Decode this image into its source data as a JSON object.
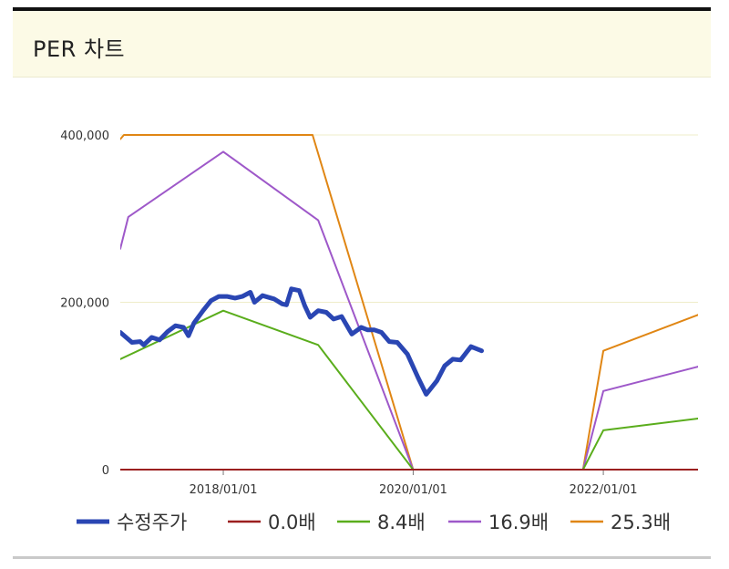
{
  "header": {
    "title": "PER 차트"
  },
  "colors": {
    "price": "#2a46b3",
    "zero": "#9b1f1f",
    "per8": "#5aad1c",
    "per16": "#9e58c9",
    "per25": "#e08614",
    "grid": "#efedc9",
    "axis": "#777777"
  },
  "chart_data": {
    "type": "line",
    "title": "PER 차트",
    "xlabel": "",
    "ylabel": "",
    "x_range": [
      "2016-12-01",
      "2022-12-31"
    ],
    "ylim": [
      0,
      400000
    ],
    "grid": true,
    "legend_position": "bottom",
    "y_ticks": [
      0,
      200000,
      400000
    ],
    "y_tick_labels": [
      "0",
      "200,000",
      "400,000"
    ],
    "x_ticks": [
      "2018/01/01",
      "2020/01/01",
      "2022/01/01"
    ],
    "x_tick_dates": [
      "2018-01-01",
      "2020-01-01",
      "2022-01-01"
    ],
    "series": [
      {
        "name": "수정주가",
        "color_key": "price",
        "width": 5,
        "points": [
          [
            "2016-12-01",
            164000
          ],
          [
            "2017-01-15",
            152000
          ],
          [
            "2017-02-15",
            153000
          ],
          [
            "2017-03-01",
            149000
          ],
          [
            "2017-04-01",
            158000
          ],
          [
            "2017-05-01",
            155000
          ],
          [
            "2017-06-01",
            165000
          ],
          [
            "2017-07-01",
            172000
          ],
          [
            "2017-08-01",
            170000
          ],
          [
            "2017-08-20",
            160000
          ],
          [
            "2017-09-10",
            175000
          ],
          [
            "2017-10-15",
            190000
          ],
          [
            "2017-11-15",
            202000
          ],
          [
            "2017-12-15",
            207000
          ],
          [
            "2018-01-15",
            207000
          ],
          [
            "2018-02-15",
            205000
          ],
          [
            "2018-03-15",
            207000
          ],
          [
            "2018-04-15",
            212000
          ],
          [
            "2018-05-01",
            200000
          ],
          [
            "2018-06-01",
            208000
          ],
          [
            "2018-07-15",
            204000
          ],
          [
            "2018-08-15",
            198000
          ],
          [
            "2018-09-01",
            197000
          ],
          [
            "2018-09-20",
            216000
          ],
          [
            "2018-10-20",
            214000
          ],
          [
            "2018-11-10",
            196000
          ],
          [
            "2018-12-01",
            182000
          ],
          [
            "2019-01-01",
            190000
          ],
          [
            "2019-02-01",
            188000
          ],
          [
            "2019-03-01",
            180000
          ],
          [
            "2019-04-01",
            183000
          ],
          [
            "2019-05-10",
            162000
          ],
          [
            "2019-06-15",
            170000
          ],
          [
            "2019-07-10",
            167000
          ],
          [
            "2019-08-05",
            167000
          ],
          [
            "2019-09-01",
            164000
          ],
          [
            "2019-10-01",
            153000
          ],
          [
            "2019-11-01",
            152000
          ],
          [
            "2019-12-10",
            138000
          ],
          [
            "2020-01-20",
            110000
          ],
          [
            "2020-02-20",
            90000
          ],
          [
            "2020-04-01",
            106000
          ],
          [
            "2020-05-01",
            124000
          ],
          [
            "2020-06-01",
            132000
          ],
          [
            "2020-07-01",
            131000
          ],
          [
            "2020-08-10",
            147000
          ],
          [
            "2020-09-20",
            142000
          ]
        ]
      },
      {
        "name": "0.0배",
        "color_key": "zero",
        "width": 2,
        "points": [
          [
            "2016-12-01",
            0
          ],
          [
            "2022-12-31",
            0
          ]
        ]
      },
      {
        "name": "8.4배",
        "color_key": "per8",
        "width": 2,
        "points": [
          [
            "2016-12-01",
            132000
          ],
          [
            "2018-01-01",
            190000
          ],
          [
            "2019-01-01",
            149000
          ],
          [
            "2020-01-01",
            0
          ],
          [
            "2021-10-15",
            0
          ],
          [
            "2022-01-01",
            47000
          ],
          [
            "2022-12-31",
            61000
          ]
        ]
      },
      {
        "name": "16.9배",
        "color_key": "per16",
        "width": 2,
        "points": [
          [
            "2016-12-01",
            264000
          ],
          [
            "2017-01-01",
            302000
          ],
          [
            "2018-01-01",
            380000
          ],
          [
            "2019-01-01",
            298000
          ],
          [
            "2020-01-01",
            0
          ],
          [
            "2021-10-15",
            0
          ],
          [
            "2022-01-01",
            94000
          ],
          [
            "2022-12-31",
            123000
          ]
        ]
      },
      {
        "name": "25.3배",
        "color_key": "per25",
        "width": 2,
        "points": [
          [
            "2016-12-01",
            395000
          ],
          [
            "2016-12-15",
            410000
          ],
          [
            "2018-12-01",
            410000
          ],
          [
            "2018-12-10",
            400000
          ],
          [
            "2020-01-01",
            0
          ],
          [
            "2021-10-15",
            0
          ],
          [
            "2022-01-01",
            142000
          ],
          [
            "2022-12-31",
            185000
          ]
        ]
      }
    ]
  }
}
